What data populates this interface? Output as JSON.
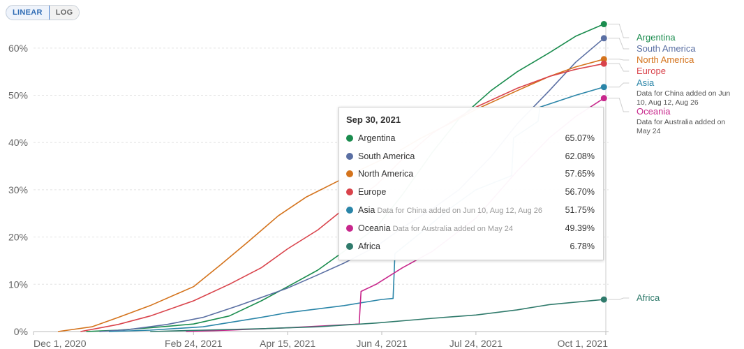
{
  "toolbar": {
    "linear_label": "LINEAR",
    "log_label": "LOG",
    "active": "linear"
  },
  "colors": {
    "Argentina": "#1a8c4e",
    "South America": "#5a6fa3",
    "North America": "#d4731c",
    "Europe": "#d9434b",
    "Asia": "#2a85a8",
    "Oceania": "#c8278c",
    "Africa": "#2f7a6b",
    "grid": "#e3e3e3",
    "axis_text": "#666666"
  },
  "chart_data": {
    "type": "line",
    "ylim": [
      0,
      65
    ],
    "y_ticks": [
      "0%",
      "10%",
      "20%",
      "30%",
      "40%",
      "50%",
      "60%"
    ],
    "x_ticks": [
      "Dec 1, 2020",
      "Feb 24, 2021",
      "Apr 15, 2021",
      "Jun 4, 2021",
      "Jul 24, 2021",
      "Oct 1, 2021"
    ],
    "x_range": [
      "2020-12-01",
      "2021-10-01"
    ],
    "series": [
      {
        "name": "Argentina",
        "note": "",
        "points": [
          [
            "2020-12-29",
            0.0
          ],
          [
            "2021-01-15",
            0.3
          ],
          [
            "2021-02-01",
            0.8
          ],
          [
            "2021-02-24",
            1.6
          ],
          [
            "2021-03-15",
            3.3
          ],
          [
            "2021-04-01",
            6.5
          ],
          [
            "2021-04-15",
            9.5
          ],
          [
            "2021-05-01",
            13.0
          ],
          [
            "2021-05-15",
            17.0
          ],
          [
            "2021-06-01",
            22.0
          ],
          [
            "2021-06-15",
            29.0
          ],
          [
            "2021-07-01",
            38.0
          ],
          [
            "2021-07-15",
            45.0
          ],
          [
            "2021-08-01",
            51.0
          ],
          [
            "2021-08-15",
            55.0
          ],
          [
            "2021-09-01",
            59.0
          ],
          [
            "2021-09-15",
            62.5
          ],
          [
            "2021-09-30",
            65.07
          ]
        ],
        "end_label": "Argentina"
      },
      {
        "name": "South America",
        "note": "",
        "points": [
          [
            "2021-01-05",
            0.0
          ],
          [
            "2021-01-20",
            0.4
          ],
          [
            "2021-02-10",
            1.5
          ],
          [
            "2021-03-01",
            3.0
          ],
          [
            "2021-03-20",
            5.5
          ],
          [
            "2021-04-15",
            9.2
          ],
          [
            "2021-05-01",
            12.0
          ],
          [
            "2021-05-15",
            14.5
          ],
          [
            "2021-06-01",
            18.0
          ],
          [
            "2021-06-15",
            22.0
          ],
          [
            "2021-07-01",
            26.0
          ],
          [
            "2021-07-15",
            30.0
          ],
          [
            "2021-08-01",
            37.0
          ],
          [
            "2021-08-15",
            44.0
          ],
          [
            "2021-09-01",
            51.0
          ],
          [
            "2021-09-15",
            57.0
          ],
          [
            "2021-09-30",
            62.08
          ]
        ],
        "end_label": "South America"
      },
      {
        "name": "North America",
        "note": "",
        "points": [
          [
            "2020-12-14",
            0.0
          ],
          [
            "2021-01-01",
            1.0
          ],
          [
            "2021-01-15",
            3.0
          ],
          [
            "2021-02-01",
            5.5
          ],
          [
            "2021-02-24",
            9.5
          ],
          [
            "2021-03-10",
            14.0
          ],
          [
            "2021-03-25",
            19.0
          ],
          [
            "2021-04-10",
            24.5
          ],
          [
            "2021-04-25",
            28.5
          ],
          [
            "2021-05-10",
            31.5
          ],
          [
            "2021-05-25",
            34.5
          ],
          [
            "2021-06-10",
            37.5
          ],
          [
            "2021-06-25",
            41.0
          ],
          [
            "2021-07-10",
            44.0
          ],
          [
            "2021-07-24",
            47.0
          ],
          [
            "2021-08-15",
            51.0
          ],
          [
            "2021-09-01",
            54.0
          ],
          [
            "2021-09-15",
            56.0
          ],
          [
            "2021-09-30",
            57.65
          ]
        ],
        "end_label": "North America"
      },
      {
        "name": "Europe",
        "note": "",
        "points": [
          [
            "2020-12-26",
            0.0
          ],
          [
            "2021-01-15",
            1.5
          ],
          [
            "2021-02-01",
            3.3
          ],
          [
            "2021-02-24",
            6.5
          ],
          [
            "2021-03-15",
            10.0
          ],
          [
            "2021-04-01",
            13.5
          ],
          [
            "2021-04-15",
            17.5
          ],
          [
            "2021-05-01",
            21.5
          ],
          [
            "2021-05-15",
            26.0
          ],
          [
            "2021-06-01",
            31.0
          ],
          [
            "2021-06-15",
            36.5
          ],
          [
            "2021-07-01",
            42.0
          ],
          [
            "2021-07-24",
            47.5
          ],
          [
            "2021-08-15",
            51.5
          ],
          [
            "2021-09-01",
            54.0
          ],
          [
            "2021-09-15",
            55.5
          ],
          [
            "2021-09-30",
            56.7
          ]
        ],
        "end_label": "Europe"
      },
      {
        "name": "Asia",
        "note": "Data for China added on Jun 10, Aug 12, Aug 26",
        "points": [
          [
            "2021-01-10",
            0.0
          ],
          [
            "2021-02-01",
            0.3
          ],
          [
            "2021-03-01",
            1.0
          ],
          [
            "2021-04-01",
            3.0
          ],
          [
            "2021-04-15",
            4.0
          ],
          [
            "2021-05-15",
            5.5
          ],
          [
            "2021-06-04",
            6.8
          ],
          [
            "2021-06-10",
            7.0
          ],
          [
            "2021-06-11",
            16.5
          ],
          [
            "2021-06-25",
            21.0
          ],
          [
            "2021-07-10",
            26.0
          ],
          [
            "2021-07-24",
            30.0
          ],
          [
            "2021-08-12",
            33.0
          ],
          [
            "2021-08-13",
            41.0
          ],
          [
            "2021-08-26",
            44.5
          ],
          [
            "2021-08-27",
            47.5
          ],
          [
            "2021-09-15",
            50.0
          ],
          [
            "2021-09-30",
            51.75
          ]
        ],
        "end_label": "Asia",
        "end_note": "Data for China added on Jun 10, Aug 12, Aug 26"
      },
      {
        "name": "Oceania",
        "note": "Data for Australia added on May 24",
        "points": [
          [
            "2021-02-20",
            0.0
          ],
          [
            "2021-03-15",
            0.3
          ],
          [
            "2021-04-15",
            0.8
          ],
          [
            "2021-05-23",
            1.6
          ],
          [
            "2021-05-24",
            8.5
          ],
          [
            "2021-06-01",
            10.0
          ],
          [
            "2021-06-15",
            13.5
          ],
          [
            "2021-07-01",
            17.0
          ],
          [
            "2021-07-24",
            24.0
          ],
          [
            "2021-08-15",
            34.0
          ],
          [
            "2021-09-01",
            41.0
          ],
          [
            "2021-09-15",
            45.5
          ],
          [
            "2021-09-30",
            49.39
          ]
        ],
        "end_label": "Oceania",
        "end_note": "Data for Australia added on May 24"
      },
      {
        "name": "Africa",
        "note": "",
        "points": [
          [
            "2021-02-01",
            0.0
          ],
          [
            "2021-03-01",
            0.3
          ],
          [
            "2021-04-01",
            0.6
          ],
          [
            "2021-05-01",
            1.0
          ],
          [
            "2021-06-01",
            1.8
          ],
          [
            "2021-07-01",
            2.8
          ],
          [
            "2021-07-24",
            3.5
          ],
          [
            "2021-08-15",
            4.6
          ],
          [
            "2021-09-01",
            5.7
          ],
          [
            "2021-09-30",
            6.78
          ]
        ],
        "end_label": "Africa"
      }
    ]
  },
  "tooltip": {
    "date": "Sep 30, 2021",
    "rows": [
      {
        "name": "Argentina",
        "note": "",
        "value": "65.07%"
      },
      {
        "name": "South America",
        "note": "",
        "value": "62.08%"
      },
      {
        "name": "North America",
        "note": "",
        "value": "57.65%"
      },
      {
        "name": "Europe",
        "note": "",
        "value": "56.70%"
      },
      {
        "name": "Asia",
        "note": "Data for China added on Jun 10, Aug 12, Aug 26",
        "value": "51.75%"
      },
      {
        "name": "Oceania",
        "note": "Data for Australia added on May 24",
        "value": "49.39%"
      },
      {
        "name": "Africa",
        "note": "",
        "value": "6.78%"
      }
    ]
  }
}
